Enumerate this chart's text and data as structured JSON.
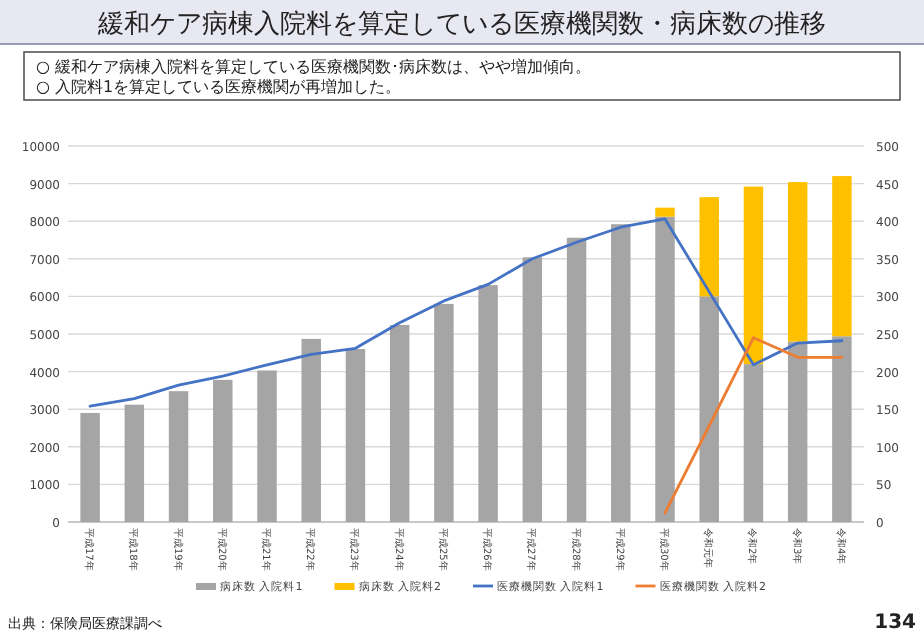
{
  "chart_data": {
    "type": "bar",
    "title": "緩和ケア病棟入院料を算定している医療機関数・病床数の推移",
    "annotations": [
      "○  緩和ケア病棟入院料を算定している医療機関数･病床数は、やや増加傾向。",
      "○  入院料1を算定している医療機関が再増加した。",
      "出典：保険局医療課調べ",
      "134"
    ],
    "categories": [
      "平成17年",
      "平成18年",
      "平成19年",
      "平成20年",
      "平成21年",
      "平成22年",
      "平成23年",
      "平成24年",
      "平成25年",
      "平成26年",
      "平成27年",
      "平成28年",
      "平成29年",
      "平成30年",
      "令和元年",
      "令和2年",
      "令和3年",
      "令和4年"
    ],
    "stacked": true,
    "series": [
      {
        "name": "病床数 入院料1",
        "color": "#a5a5a5",
        "values": [
          2900,
          3120,
          3480,
          3780,
          4030,
          4870,
          4600,
          5240,
          5800,
          6300,
          7040,
          7560,
          7920,
          8120,
          6000,
          4200,
          4800,
          4940
        ]
      },
      {
        "name": "病床数 入院料2",
        "color": "#ffc000",
        "values": [
          null,
          null,
          null,
          null,
          null,
          null,
          null,
          null,
          null,
          null,
          null,
          null,
          null,
          240,
          2640,
          4720,
          4240,
          4260
        ]
      },
      {
        "name": "医療機関数 入院料1",
        "type": "line",
        "axis": "y2",
        "color": "#4472c4",
        "values": [
          154,
          164,
          182,
          194,
          209,
          223,
          231,
          265,
          294,
          316,
          350,
          372,
          392,
          403,
          306,
          209,
          238,
          241
        ]
      },
      {
        "name": "医療機関数 入院料2",
        "type": "line",
        "axis": "y2",
        "color": "#ed7d31",
        "values": [
          null,
          null,
          null,
          null,
          null,
          null,
          null,
          null,
          null,
          null,
          null,
          null,
          null,
          12,
          128,
          245,
          219,
          219
        ]
      }
    ],
    "ylim": [
      0,
      10000
    ],
    "yticks": [
      0,
      1000,
      2000,
      3000,
      4000,
      5000,
      6000,
      7000,
      8000,
      9000,
      10000
    ],
    "y2lim": [
      0,
      500
    ],
    "y2ticks": [
      0,
      50,
      100,
      150,
      200,
      250,
      300,
      350,
      400,
      450,
      500
    ],
    "grid": "y",
    "legend": "bottom"
  }
}
